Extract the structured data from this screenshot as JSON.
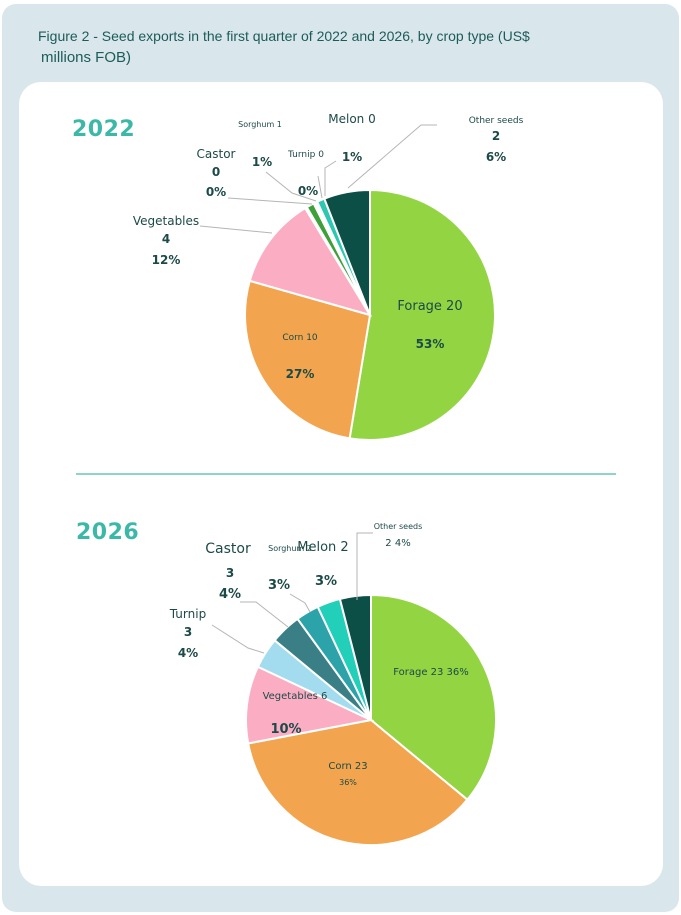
{
  "figure": {
    "title_line1": "Figure 2 - Seed exports in the first quarter of 2022 and 2026, by crop type (US$",
    "title_line2": "millions FOB)"
  },
  "chart_data": [
    {
      "type": "pie",
      "title": "2022",
      "slices": [
        {
          "label": "Forage",
          "value": 20,
          "percent": "53%",
          "color": "#93d443"
        },
        {
          "label": "Corn",
          "value": 10,
          "percent": "27%",
          "color": "#f2a54e"
        },
        {
          "label": "Vegetables",
          "value": 4,
          "percent": "12%",
          "color": "#fbaec3"
        },
        {
          "label": "Castor",
          "value": 0,
          "percent": "0%",
          "color": "#a3dcee"
        },
        {
          "label": "Sorghum",
          "value": 1,
          "percent": "1%",
          "color": "#3da03a"
        },
        {
          "label": "Turnip",
          "value": 0,
          "percent": "0%",
          "color": "#ffffff"
        },
        {
          "label": "Melon",
          "value": 0,
          "percent": "1%",
          "color": "#2ec8b2"
        },
        {
          "label": "Other seeds",
          "value": 2,
          "percent": "6%",
          "color": "#0c4f47"
        }
      ]
    },
    {
      "type": "pie",
      "title": "2026",
      "slices": [
        {
          "label": "Forage",
          "value": 23,
          "percent": "36%",
          "color": "#93d443"
        },
        {
          "label": "Corn",
          "value": 23,
          "percent": "36%",
          "color": "#f2a54e"
        },
        {
          "label": "Vegetables",
          "value": 6,
          "percent": "10%",
          "color": "#fbaec3"
        },
        {
          "label": "Turnip",
          "value": 3,
          "percent": "4%",
          "color": "#a3dcee"
        },
        {
          "label": "Castor",
          "value": 3,
          "percent": "4%",
          "color": "#3a7f85"
        },
        {
          "label": "Sorghum",
          "value": 2,
          "percent": "3%",
          "color": "#2ba3a8"
        },
        {
          "label": "Melon",
          "value": 2,
          "percent": "3%",
          "color": "#22cfb8"
        },
        {
          "label": "Other seeds",
          "value": 2,
          "percent": "4%",
          "color": "#0c4f47"
        }
      ]
    }
  ]
}
